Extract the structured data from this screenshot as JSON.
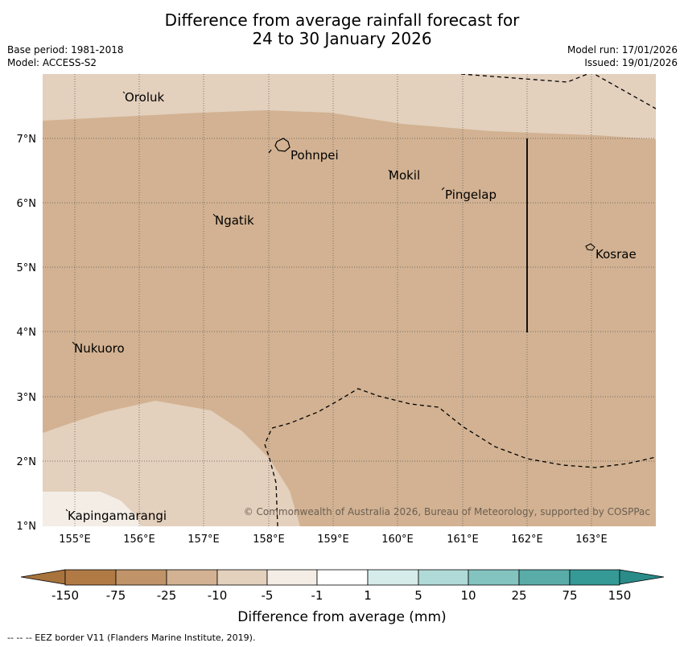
{
  "title": {
    "line1": "Difference from average rainfall forecast for",
    "line2": "24 to 30 January 2026"
  },
  "meta_left": {
    "base_period": "Base period: 1981-2018",
    "model": "Model: ACCESS-S2"
  },
  "meta_right": {
    "model_run": "Model run: 17/01/2026",
    "issued": "Issued: 19/01/2026"
  },
  "map": {
    "lon_ticks": [
      "155°E",
      "156°E",
      "157°E",
      "158°E",
      "159°E",
      "160°E",
      "161°E",
      "162°E",
      "163°E"
    ],
    "lat_ticks": [
      "7°N",
      "6°N",
      "5°N",
      "4°N",
      "3°N",
      "2°N",
      "1°N"
    ],
    "places": [
      {
        "name": "Oroluk"
      },
      {
        "name": "Pohnpei"
      },
      {
        "name": "Mokil"
      },
      {
        "name": "Pingelap"
      },
      {
        "name": "Ngatik"
      },
      {
        "name": "Kosrae"
      },
      {
        "name": "Nukuoro"
      },
      {
        "name": "Kapingamarangi"
      }
    ],
    "copyright": "© Commonwealth of Australia 2026, Bureau of Meteorology, supported by COSPPac"
  },
  "colorbar": {
    "labels": [
      "-150",
      "-75",
      "-25",
      "-10",
      "-5",
      "-1",
      "1",
      "5",
      "10",
      "25",
      "75",
      "150"
    ],
    "colors": [
      "#a8733c",
      "#b17a45",
      "#c09468",
      "#d2b292",
      "#e3d0bd",
      "#f3ede6",
      "#ffffff",
      "#d6eceb",
      "#b0dad8",
      "#83c3c0",
      "#5aaca9",
      "#359996",
      "#2a8c89"
    ],
    "title": "Difference from average (mm)"
  },
  "footnote": "--  --  -- EEZ border V11 (Flanders Marine Institute, 2019)."
}
